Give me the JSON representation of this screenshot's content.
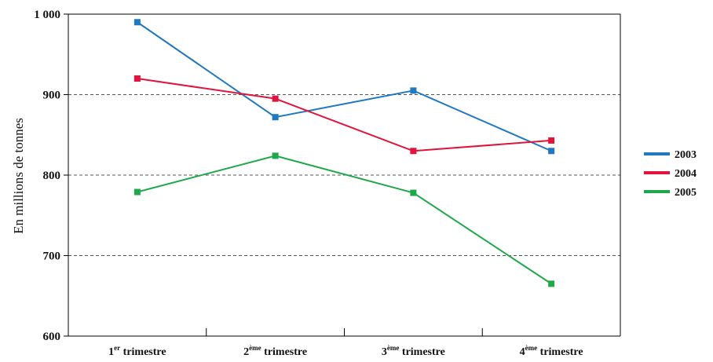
{
  "chart_data": {
    "type": "line",
    "ylabel": "En millions de tonnes",
    "ylim": [
      600,
      1000
    ],
    "yticks": [
      {
        "value": 600,
        "label": "600"
      },
      {
        "value": 700,
        "label": "700"
      },
      {
        "value": 800,
        "label": "800"
      },
      {
        "value": 900,
        "label": "900"
      },
      {
        "value": 1000,
        "label": "1 000"
      }
    ],
    "categories": [
      {
        "num": "1",
        "sup": "er",
        "text": " trimestre"
      },
      {
        "num": "2",
        "sup": "ème",
        "text": " trimestre"
      },
      {
        "num": "3",
        "sup": "ème",
        "text": " trimestre"
      },
      {
        "num": "4",
        "sup": "ème",
        "text": " trimestre"
      }
    ],
    "grid": "dashed horizontal at 700, 800, 900",
    "legend_position": "right",
    "series": [
      {
        "name": "2003",
        "color": "#1f78c1",
        "values": [
          990,
          872,
          905,
          830
        ]
      },
      {
        "name": "2004",
        "color": "#e0143c",
        "values": [
          920,
          895,
          830,
          843
        ]
      },
      {
        "name": "2005",
        "color": "#1fa84a",
        "values": [
          779,
          824,
          778,
          665
        ]
      }
    ]
  }
}
